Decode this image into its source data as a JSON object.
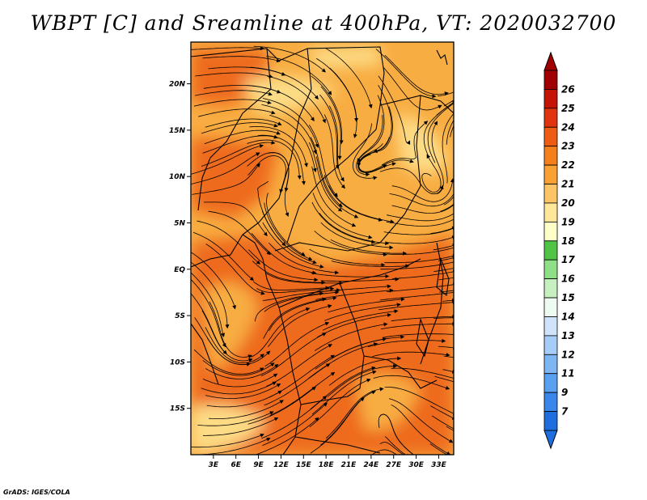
{
  "title": "WBPT [C] and Sreamline at 400hPa, VT: 2020032700",
  "credit": "GrADS: IGES/COLA",
  "map": {
    "lat_labels": [
      "20N",
      "15N",
      "10N",
      "5N",
      "EQ",
      "5S",
      "10S",
      "15S"
    ],
    "lon_labels": [
      "3E",
      "6E",
      "9E",
      "12E",
      "15E",
      "18E",
      "21E",
      "24E",
      "27E",
      "30E",
      "33E"
    ],
    "lat_range": [
      -20,
      24.5
    ],
    "lon_range": [
      0,
      35
    ]
  },
  "colorbar": {
    "labels": [
      "7",
      "9",
      "11",
      "12",
      "13",
      "14",
      "15",
      "16",
      "17",
      "18",
      "19",
      "20",
      "21",
      "22",
      "23",
      "24",
      "25",
      "26"
    ],
    "colors": [
      "#1e6ee0",
      "#3a86ea",
      "#5aa0f0",
      "#7eb6f4",
      "#a6ccf8",
      "#cfe4fb",
      "#eefbf0",
      "#c6f0c0",
      "#8fdf86",
      "#4fc445",
      "#ffffc8",
      "#ffe79a",
      "#fdc467",
      "#f9a233",
      "#f57f1b",
      "#ee5c14",
      "#e0340e",
      "#c31405",
      "#a00000"
    ],
    "arrow_low_color": "#1e6ee0",
    "arrow_high_color": "#a00000"
  },
  "colors": {
    "field_mid": "#f8ad42",
    "field_high": "#ee6a1e",
    "field_low": "#fddc86",
    "streamline": "#000000"
  }
}
